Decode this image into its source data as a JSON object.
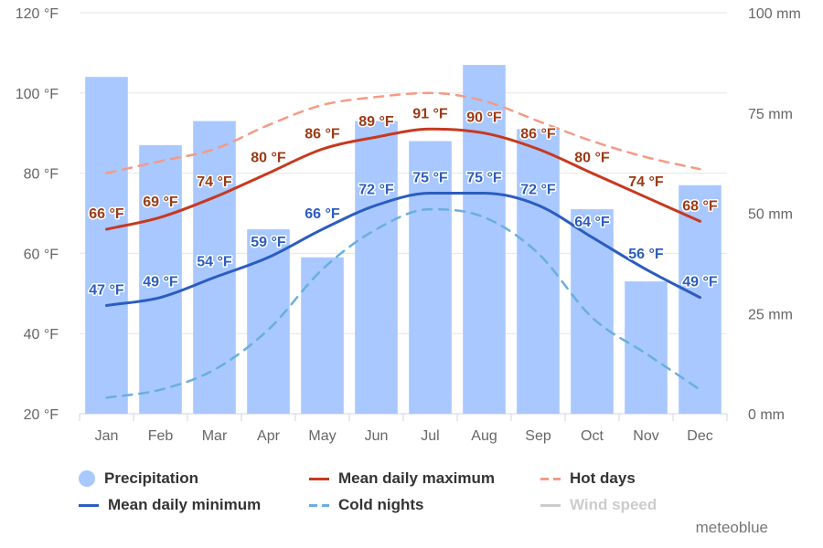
{
  "chart_data": {
    "type": "bar+line",
    "categories": [
      "Jan",
      "Feb",
      "Mar",
      "Apr",
      "May",
      "Jun",
      "Jul",
      "Aug",
      "Sep",
      "Oct",
      "Nov",
      "Dec"
    ],
    "left_axis": {
      "ticks": [
        "20 °F",
        "40 °F",
        "60 °F",
        "80 °F",
        "100 °F",
        "120 °F"
      ],
      "range": [
        20,
        120
      ],
      "unit": "°F"
    },
    "right_axis": {
      "ticks": [
        "0 mm",
        "25 mm",
        "50 mm",
        "75 mm",
        "100 mm"
      ],
      "range": [
        0,
        100
      ],
      "unit": "mm"
    },
    "precipitation": {
      "name": "Precipitation",
      "unit": "mm",
      "color": "#a8c8ff",
      "values": [
        84,
        67,
        73,
        46,
        39,
        73,
        68,
        87,
        71,
        51,
        33,
        57
      ]
    },
    "mean_max": {
      "name": "Mean daily maximum",
      "color": "#c8381e",
      "label_color": "#9c3a14",
      "values": [
        66,
        69,
        74,
        80,
        86,
        89,
        91,
        90,
        86,
        80,
        74,
        68
      ],
      "labels": [
        "66 °F",
        "69 °F",
        "74 °F",
        "80 °F",
        "86 °F",
        "89 °F",
        "91 °F",
        "90 °F",
        "86 °F",
        "80 °F",
        "74 °F",
        "68 °F"
      ]
    },
    "mean_min": {
      "name": "Mean daily minimum",
      "color": "#2b5cc0",
      "label_color": "#2b5cc0",
      "values": [
        47,
        49,
        54,
        59,
        66,
        72,
        75,
        75,
        72,
        64,
        56,
        49
      ],
      "labels": [
        "47 °F",
        "49 °F",
        "54 °F",
        "59 °F",
        "66 °F",
        "72 °F",
        "75 °F",
        "75 °F",
        "72 °F",
        "64 °F",
        "56 °F",
        "49 °F"
      ]
    },
    "hot_days": {
      "name": "Hot days",
      "color": "#f59a84",
      "values": [
        80,
        83,
        86,
        92,
        97,
        99,
        100,
        98,
        93,
        88,
        84,
        81
      ]
    },
    "cold_nights": {
      "name": "Cold nights",
      "color": "#6aaee0",
      "values": [
        24,
        26,
        31,
        41,
        56,
        66,
        71,
        69,
        60,
        44,
        35,
        26
      ]
    },
    "wind_speed": {
      "name": "Wind speed",
      "color": "#cccccc",
      "visible": false
    },
    "grid": true
  },
  "brand": "meteoblue"
}
